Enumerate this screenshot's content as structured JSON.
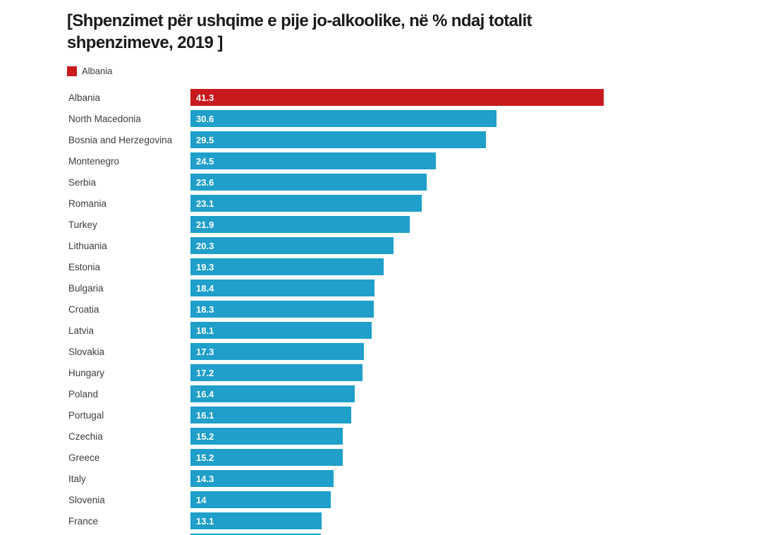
{
  "title": "[Shpenzimet për ushqime e pije jo-alkoolike, në % ndaj totalit shpenzimeve, 2019 ]",
  "legend": {
    "items": [
      {
        "label": "Albania",
        "color": "#c8191e"
      }
    ]
  },
  "chart_data": {
    "type": "bar",
    "orientation": "horizontal",
    "title": "[Shpenzimet për ushqime e pije jo-alkoolike, në % ndaj totalit shpenzimeve, 2019 ]",
    "categories": [
      "Albania",
      "North Macedonia",
      "Bosnia and Herzegovina",
      "Montenegro",
      "Serbia",
      "Romania",
      "Turkey",
      "Lithuania",
      "Estonia",
      "Bulgaria",
      "Croatia",
      "Latvia",
      "Slovakia",
      "Hungary",
      "Poland",
      "Portugal",
      "Czechia",
      "Greece",
      "Italy",
      "Slovenia",
      "France"
    ],
    "values": [
      41.3,
      30.6,
      29.5,
      24.5,
      23.6,
      23.1,
      21.9,
      20.3,
      19.3,
      18.4,
      18.3,
      18.1,
      17.3,
      17.2,
      16.4,
      16.1,
      15.2,
      15.2,
      14.3,
      14,
      13.1
    ],
    "highlight_index": 0,
    "colors": {
      "bar_default": "#1f9fca",
      "bar_highlight": "#c8191e",
      "value_text": "#ffffff",
      "category_text": "#3d3d3d"
    },
    "x_max": 41.3,
    "grid": false,
    "legend_position": "top-left",
    "value_labels_inside_bars": true,
    "partial_next_bar": {
      "visible": true,
      "estimated_value": 13.0
    }
  }
}
